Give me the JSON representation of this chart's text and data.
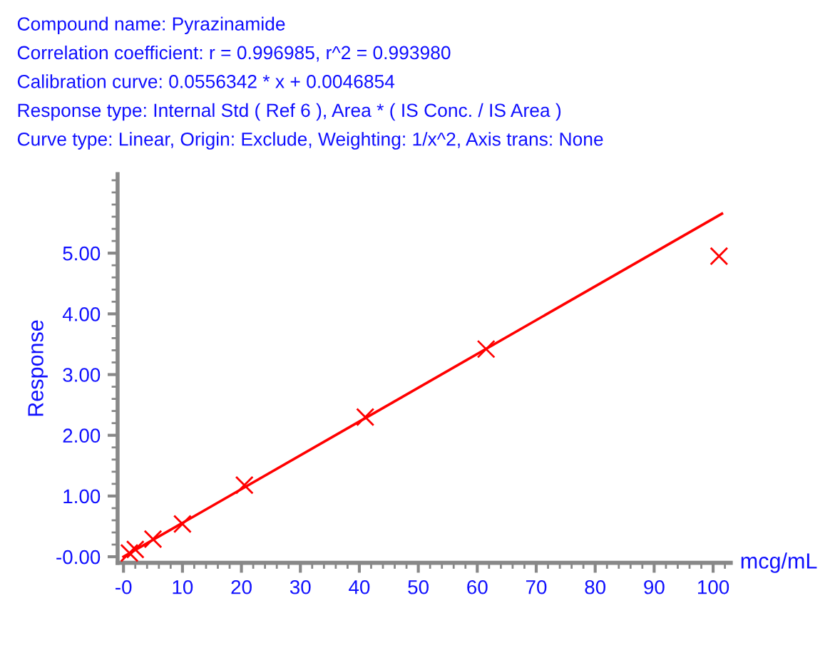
{
  "chart_data": {
    "type": "scatter",
    "annotations": [
      "Compound name: Pyrazinamide",
      "Correlation coefficient: r = 0.996985, r^2 = 0.993980",
      "Calibration curve: 0.0556342 * x + 0.0046854",
      "Response type: Internal Std ( Ref 6 ), Area * ( IS Conc. / IS Area )",
      "Curve type: Linear, Origin: Exclude, Weighting: 1/x^2, Axis trans: None"
    ],
    "xlabel": "mcg/mL",
    "ylabel": "Response",
    "xlim": [
      -1,
      103
    ],
    "ylim": [
      -0.1,
      6.3
    ],
    "xticks": [
      {
        "value": 0,
        "label": "-0"
      },
      10,
      20,
      30,
      40,
      50,
      60,
      70,
      80,
      90,
      100
    ],
    "yticks": [
      {
        "value": 0,
        "label": "-0.00"
      },
      {
        "value": 1,
        "label": "1.00"
      },
      {
        "value": 2,
        "label": "2.00"
      },
      {
        "value": 3,
        "label": "3.00"
      },
      {
        "value": 4,
        "label": "4.00"
      },
      {
        "value": 5,
        "label": "5.00"
      }
    ],
    "grid": false,
    "legend": false,
    "series": [
      {
        "type": "line",
        "color": "#ff0000",
        "x": [
          0,
          101.5
        ],
        "values": [
          0.0,
          5.65
        ],
        "marker": "none",
        "line_style": "solid"
      },
      {
        "color": "#ff0000",
        "x": [
          1,
          2,
          5,
          10,
          20.5,
          41,
          61.5,
          101
        ],
        "values": [
          0.06,
          0.12,
          0.29,
          0.54,
          1.18,
          2.3,
          3.42,
          4.95
        ],
        "marker": "cross"
      }
    ]
  }
}
